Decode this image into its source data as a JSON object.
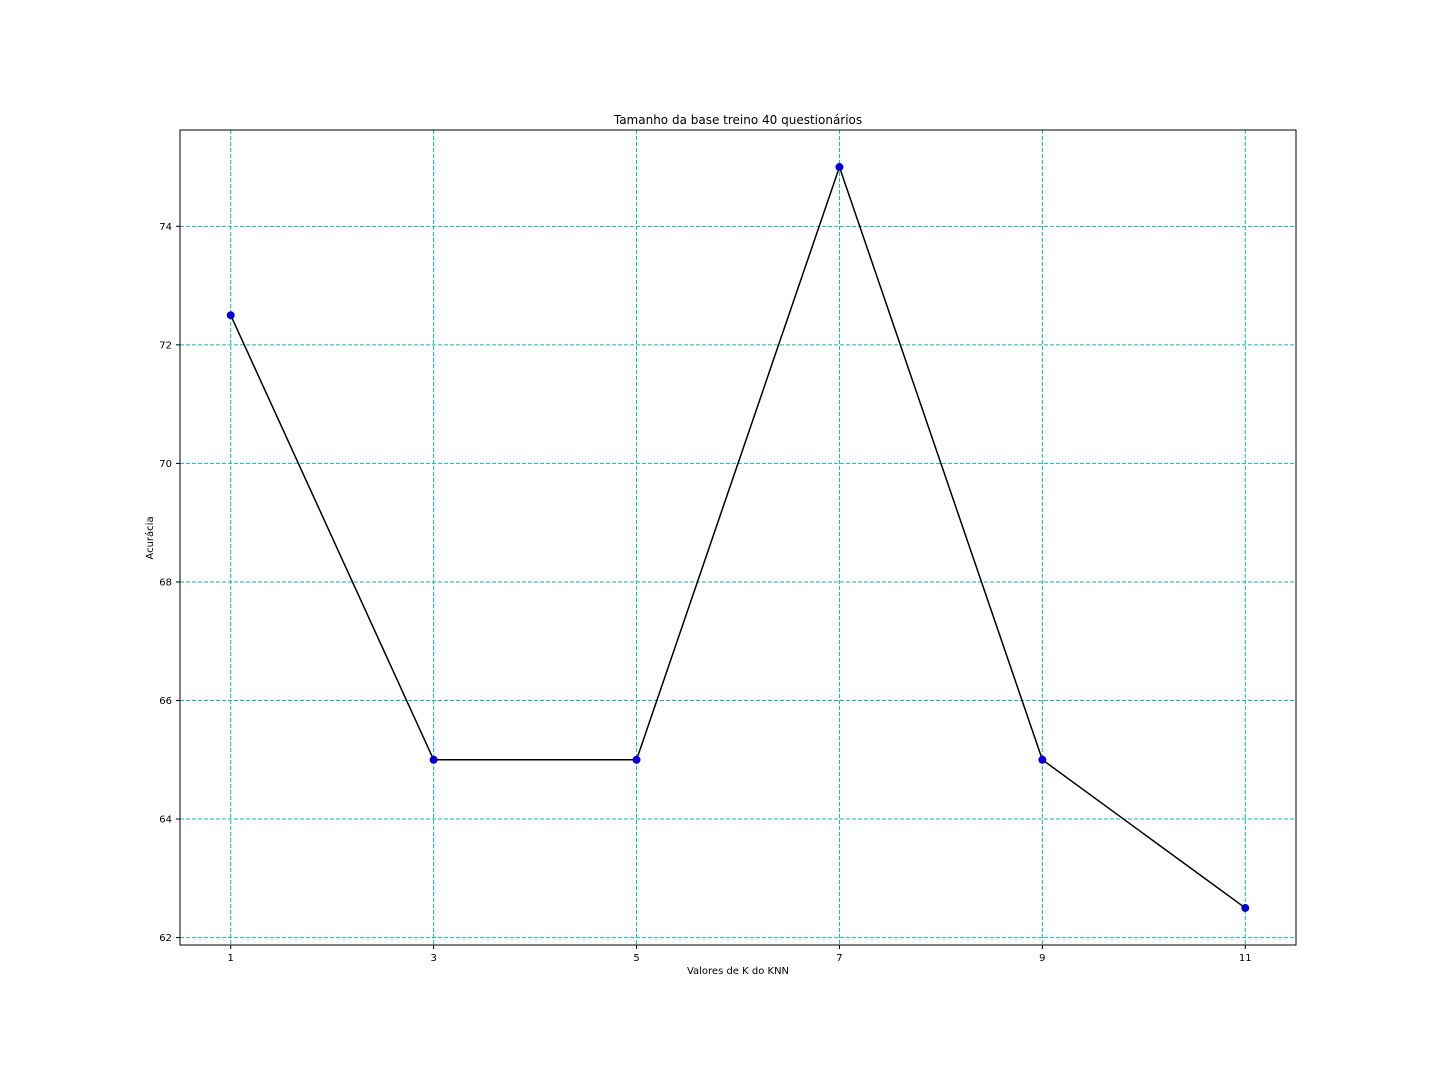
{
  "chart_data": {
    "type": "line",
    "title": "Tamanho da base treino 40 questionários",
    "xlabel": "Valores de K do KNN",
    "ylabel": "Acurácia",
    "x": [
      1,
      3,
      5,
      7,
      9,
      11
    ],
    "series": [
      {
        "values": [
          72.5,
          65,
          65,
          75,
          65,
          62.5
        ],
        "line_color": "#000000",
        "marker_color": "#0000cc"
      }
    ],
    "xticks": [
      1,
      3,
      5,
      7,
      9,
      11
    ],
    "yticks": [
      62,
      64,
      66,
      68,
      70,
      72,
      74
    ],
    "xlim": [
      0.5,
      11.5
    ],
    "ylim": [
      61.875,
      75.625
    ],
    "grid": true,
    "grid_color": "#17b2b2",
    "legend": "none"
  }
}
